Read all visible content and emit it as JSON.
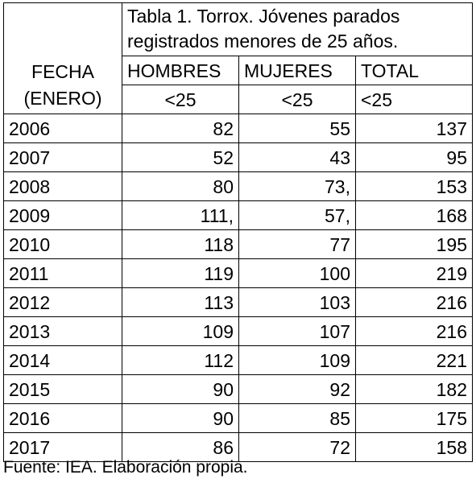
{
  "table": {
    "title_line1": "Tabla 1. Torrox. Jóvenes parados",
    "title_line2": "registrados menores de 25 años.",
    "fecha_label_line1": "FECHA",
    "fecha_label_line2": "(ENERO)",
    "headers": [
      "HOMBRES",
      "MUJERES",
      "TOTAL"
    ],
    "subheaders": [
      "<25",
      "<25",
      "<25"
    ],
    "rows": [
      {
        "year": "2006",
        "hombres": "82",
        "mujeres": "55",
        "total": "137"
      },
      {
        "year": "2007",
        "hombres": "52",
        "mujeres": "43",
        "total": "95"
      },
      {
        "year": "2008",
        "hombres": "80",
        "mujeres": "73,",
        "total": "153"
      },
      {
        "year": "2009",
        "hombres": "111,",
        "mujeres": "57,",
        "total": "168"
      },
      {
        "year": "2010",
        "hombres": "118",
        "mujeres": "77",
        "total": "195"
      },
      {
        "year": "2011",
        "hombres": "119",
        "mujeres": "100",
        "total": "219"
      },
      {
        "year": "2012",
        "hombres": "113",
        "mujeres": "103",
        "total": "216"
      },
      {
        "year": "2013",
        "hombres": "109",
        "mujeres": "107",
        "total": "216"
      },
      {
        "year": "2014",
        "hombres": "112",
        "mujeres": "109",
        "total": "221"
      },
      {
        "year": "2015",
        "hombres": "90",
        "mujeres": "92",
        "total": "182"
      },
      {
        "year": "2016",
        "hombres": "90",
        "mujeres": "85",
        "total": "175"
      },
      {
        "year": "2017",
        "hombres": "86",
        "mujeres": "72",
        "total": "158"
      }
    ]
  },
  "source": "Fuente: IEA. Elaboración propia."
}
